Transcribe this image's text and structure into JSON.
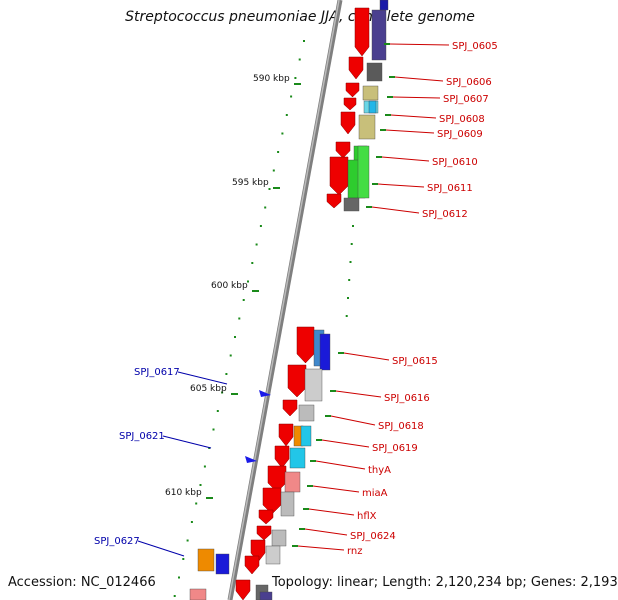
{
  "title": "Streptococcus pneumoniae JJA, complete genome",
  "footer": {
    "accession": "Accession: NC_012466",
    "summary": "Topology: linear; Length: 2,120,234 bp; Genes: 2,193"
  },
  "colors": {
    "gene_arrow": "#ee0000",
    "label_red": "#cc0000",
    "label_blue": "#0000aa",
    "tick_green": "#1a8a1a",
    "backbone": "#888888"
  },
  "scale_labels": [
    "590 kbp",
    "595 kbp",
    "600 kbp",
    "605 kbp",
    "610 kbp"
  ],
  "genes_right": [
    "SPJ_0605",
    "SPJ_0606",
    "SPJ_0607",
    "SPJ_0608",
    "SPJ_0609",
    "SPJ_0610",
    "SPJ_0611",
    "SPJ_0612",
    "SPJ_0615",
    "SPJ_0616",
    "SPJ_0618",
    "SPJ_0619",
    "thyA",
    "miaA",
    "hflX",
    "SPJ_0624",
    "rnz"
  ],
  "genes_left": [
    "SPJ_0617",
    "SPJ_0621",
    "SPJ_0627"
  ]
}
